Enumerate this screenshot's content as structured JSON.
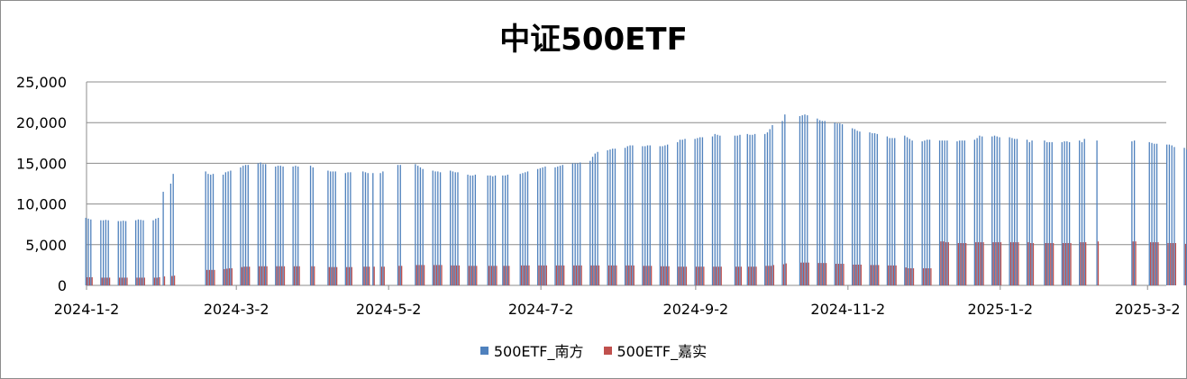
{
  "chart_data": {
    "type": "bar",
    "title": "中证500ETF",
    "xlabel": "",
    "ylabel": "",
    "ylim": [
      0,
      25000
    ],
    "yticks": [
      "0",
      "5,000",
      "10,000",
      "15,000",
      "20,000",
      "25,000"
    ],
    "xtick_labels": [
      "2024-1-2",
      "2024-3-2",
      "2024-5-2",
      "2024-7-2",
      "2024-9-2",
      "2024-11-2",
      "2025-1-2",
      "2025-3-2"
    ],
    "grid": true,
    "legend_position": "bottom",
    "series": [
      {
        "name": "500ETF_南方",
        "color": "#4f81bd"
      },
      {
        "name": "500ETF_嘉实",
        "color": "#c0504d"
      }
    ],
    "points": [
      [
        "2024-01-02",
        8300,
        1000
      ],
      [
        "2024-01-03",
        8200,
        1000
      ],
      [
        "2024-01-04",
        8100,
        1000
      ],
      [
        "2024-01-08",
        8000,
        950
      ],
      [
        "2024-01-09",
        8000,
        950
      ],
      [
        "2024-01-10",
        8050,
        950
      ],
      [
        "2024-01-11",
        8000,
        950
      ],
      [
        "2024-01-15",
        7900,
        950
      ],
      [
        "2024-01-16",
        7900,
        950
      ],
      [
        "2024-01-17",
        7950,
        950
      ],
      [
        "2024-01-18",
        7900,
        950
      ],
      [
        "2024-01-22",
        8000,
        950
      ],
      [
        "2024-01-23",
        8100,
        950
      ],
      [
        "2024-01-24",
        8050,
        950
      ],
      [
        "2024-01-25",
        8000,
        950
      ],
      [
        "2024-01-29",
        8000,
        950
      ],
      [
        "2024-01-30",
        8200,
        950
      ],
      [
        "2024-01-31",
        8300,
        1000
      ],
      [
        "2024-02-02",
        11500,
        1100
      ],
      [
        "2024-02-05",
        12500,
        1150
      ],
      [
        "2024-02-06",
        13700,
        1200
      ],
      [
        "2024-02-19",
        14000,
        1900
      ],
      [
        "2024-02-20",
        13700,
        1900
      ],
      [
        "2024-02-21",
        13600,
        1900
      ],
      [
        "2024-02-22",
        13700,
        1900
      ],
      [
        "2024-02-26",
        13600,
        2000
      ],
      [
        "2024-02-27",
        13900,
        2050
      ],
      [
        "2024-02-28",
        14000,
        2100
      ],
      [
        "2024-02-29",
        14100,
        2100
      ],
      [
        "2024-03-04",
        14500,
        2250
      ],
      [
        "2024-03-05",
        14700,
        2300
      ],
      [
        "2024-03-06",
        14800,
        2300
      ],
      [
        "2024-03-07",
        14800,
        2300
      ],
      [
        "2024-03-11",
        15000,
        2350
      ],
      [
        "2024-03-12",
        15100,
        2350
      ],
      [
        "2024-03-13",
        14900,
        2350
      ],
      [
        "2024-03-14",
        14900,
        2350
      ],
      [
        "2024-03-18",
        14600,
        2350
      ],
      [
        "2024-03-19",
        14700,
        2350
      ],
      [
        "2024-03-20",
        14700,
        2350
      ],
      [
        "2024-03-21",
        14600,
        2350
      ],
      [
        "2024-03-25",
        14600,
        2350
      ],
      [
        "2024-03-26",
        14700,
        2350
      ],
      [
        "2024-03-27",
        14600,
        2350
      ],
      [
        "2024-04-01",
        14700,
        2350
      ],
      [
        "2024-04-02",
        14500,
        2350
      ],
      [
        "2024-04-08",
        14100,
        2250
      ],
      [
        "2024-04-09",
        14000,
        2250
      ],
      [
        "2024-04-10",
        14000,
        2250
      ],
      [
        "2024-04-11",
        14000,
        2250
      ],
      [
        "2024-04-15",
        13800,
        2250
      ],
      [
        "2024-04-16",
        13900,
        2250
      ],
      [
        "2024-04-17",
        13900,
        2250
      ],
      [
        "2024-04-22",
        14000,
        2300
      ],
      [
        "2024-04-23",
        13900,
        2300
      ],
      [
        "2024-04-24",
        13800,
        2300
      ],
      [
        "2024-04-26",
        13800,
        2300
      ],
      [
        "2024-04-29",
        13800,
        2300
      ],
      [
        "2024-04-30",
        14000,
        2300
      ],
      [
        "2024-05-06",
        14800,
        2400
      ],
      [
        "2024-05-07",
        14800,
        2400
      ],
      [
        "2024-05-13",
        14900,
        2500
      ],
      [
        "2024-05-14",
        14700,
        2500
      ],
      [
        "2024-05-15",
        14500,
        2500
      ],
      [
        "2024-05-16",
        14300,
        2500
      ],
      [
        "2024-05-20",
        14100,
        2500
      ],
      [
        "2024-05-21",
        14000,
        2500
      ],
      [
        "2024-05-22",
        14000,
        2500
      ],
      [
        "2024-05-23",
        13900,
        2500
      ],
      [
        "2024-05-27",
        14100,
        2450
      ],
      [
        "2024-05-28",
        14000,
        2450
      ],
      [
        "2024-05-29",
        13900,
        2450
      ],
      [
        "2024-05-30",
        13900,
        2450
      ],
      [
        "2024-06-03",
        13600,
        2400
      ],
      [
        "2024-06-04",
        13500,
        2400
      ],
      [
        "2024-06-05",
        13500,
        2400
      ],
      [
        "2024-06-06",
        13600,
        2400
      ],
      [
        "2024-06-11",
        13500,
        2400
      ],
      [
        "2024-06-12",
        13500,
        2400
      ],
      [
        "2024-06-13",
        13400,
        2400
      ],
      [
        "2024-06-14",
        13500,
        2400
      ],
      [
        "2024-06-17",
        13500,
        2400
      ],
      [
        "2024-06-18",
        13500,
        2400
      ],
      [
        "2024-06-19",
        13600,
        2400
      ],
      [
        "2024-06-24",
        13700,
        2450
      ],
      [
        "2024-06-25",
        13800,
        2450
      ],
      [
        "2024-06-26",
        13900,
        2450
      ],
      [
        "2024-06-27",
        14000,
        2450
      ],
      [
        "2024-07-01",
        14300,
        2450
      ],
      [
        "2024-07-02",
        14400,
        2450
      ],
      [
        "2024-07-03",
        14500,
        2450
      ],
      [
        "2024-07-04",
        14600,
        2450
      ],
      [
        "2024-07-08",
        14500,
        2450
      ],
      [
        "2024-07-09",
        14600,
        2450
      ],
      [
        "2024-07-10",
        14700,
        2450
      ],
      [
        "2024-07-11",
        14800,
        2450
      ],
      [
        "2024-07-15",
        15000,
        2450
      ],
      [
        "2024-07-16",
        15000,
        2450
      ],
      [
        "2024-07-17",
        15000,
        2450
      ],
      [
        "2024-07-18",
        15100,
        2450
      ],
      [
        "2024-07-22",
        15300,
        2450
      ],
      [
        "2024-07-23",
        15800,
        2450
      ],
      [
        "2024-07-24",
        16200,
        2450
      ],
      [
        "2024-07-25",
        16400,
        2450
      ],
      [
        "2024-07-29",
        16600,
        2450
      ],
      [
        "2024-07-30",
        16700,
        2450
      ],
      [
        "2024-07-31",
        16800,
        2450
      ],
      [
        "2024-08-01",
        16800,
        2450
      ],
      [
        "2024-08-05",
        16900,
        2450
      ],
      [
        "2024-08-06",
        17100,
        2450
      ],
      [
        "2024-08-07",
        17200,
        2450
      ],
      [
        "2024-08-08",
        17200,
        2450
      ],
      [
        "2024-08-12",
        17100,
        2400
      ],
      [
        "2024-08-13",
        17100,
        2400
      ],
      [
        "2024-08-14",
        17200,
        2400
      ],
      [
        "2024-08-15",
        17200,
        2400
      ],
      [
        "2024-08-19",
        17100,
        2350
      ],
      [
        "2024-08-20",
        17100,
        2350
      ],
      [
        "2024-08-21",
        17200,
        2350
      ],
      [
        "2024-08-22",
        17300,
        2350
      ],
      [
        "2024-08-26",
        17600,
        2300
      ],
      [
        "2024-08-27",
        17900,
        2300
      ],
      [
        "2024-08-28",
        17900,
        2300
      ],
      [
        "2024-08-29",
        18000,
        2300
      ],
      [
        "2024-09-02",
        18000,
        2300
      ],
      [
        "2024-09-03",
        18100,
        2300
      ],
      [
        "2024-09-04",
        18200,
        2300
      ],
      [
        "2024-09-05",
        18200,
        2300
      ],
      [
        "2024-09-09",
        18300,
        2300
      ],
      [
        "2024-09-10",
        18600,
        2300
      ],
      [
        "2024-09-11",
        18500,
        2300
      ],
      [
        "2024-09-12",
        18400,
        2300
      ],
      [
        "2024-09-18",
        18400,
        2300
      ],
      [
        "2024-09-19",
        18400,
        2300
      ],
      [
        "2024-09-20",
        18500,
        2300
      ],
      [
        "2024-09-23",
        18600,
        2300
      ],
      [
        "2024-09-24",
        18500,
        2300
      ],
      [
        "2024-09-25",
        18500,
        2300
      ],
      [
        "2024-09-26",
        18600,
        2300
      ],
      [
        "2024-09-30",
        18600,
        2400
      ],
      [
        "2024-10-01",
        18800,
        2400
      ],
      [
        "2024-10-02",
        19200,
        2400
      ],
      [
        "2024-10-03",
        19700,
        2500
      ],
      [
        "2024-10-07",
        20200,
        2600
      ],
      [
        "2024-10-08",
        21000,
        2700
      ],
      [
        "2024-10-14",
        20800,
        2800
      ],
      [
        "2024-10-15",
        20900,
        2800
      ],
      [
        "2024-10-16",
        21000,
        2800
      ],
      [
        "2024-10-17",
        20900,
        2800
      ],
      [
        "2024-10-21",
        20500,
        2750
      ],
      [
        "2024-10-22",
        20300,
        2750
      ],
      [
        "2024-10-23",
        20200,
        2750
      ],
      [
        "2024-10-24",
        20200,
        2750
      ],
      [
        "2024-10-28",
        20000,
        2650
      ],
      [
        "2024-10-29",
        19900,
        2650
      ],
      [
        "2024-10-30",
        19900,
        2650
      ],
      [
        "2024-10-31",
        19800,
        2650
      ],
      [
        "2024-11-04",
        19300,
        2550
      ],
      [
        "2024-11-05",
        19200,
        2550
      ],
      [
        "2024-11-06",
        19000,
        2550
      ],
      [
        "2024-11-07",
        18900,
        2550
      ],
      [
        "2024-11-11",
        18800,
        2500
      ],
      [
        "2024-11-12",
        18700,
        2500
      ],
      [
        "2024-11-13",
        18700,
        2500
      ],
      [
        "2024-11-14",
        18600,
        2500
      ],
      [
        "2024-11-18",
        18300,
        2450
      ],
      [
        "2024-11-19",
        18100,
        2450
      ],
      [
        "2024-11-20",
        18100,
        2450
      ],
      [
        "2024-11-21",
        18100,
        2450
      ],
      [
        "2024-11-25",
        18400,
        2200
      ],
      [
        "2024-11-26",
        18200,
        2100
      ],
      [
        "2024-11-27",
        18000,
        2100
      ],
      [
        "2024-11-28",
        17800,
        2100
      ],
      [
        "2024-12-02",
        17700,
        2100
      ],
      [
        "2024-12-03",
        17800,
        2100
      ],
      [
        "2024-12-04",
        17900,
        2100
      ],
      [
        "2024-12-05",
        17900,
        2100
      ],
      [
        "2024-12-09",
        17800,
        5400
      ],
      [
        "2024-12-10",
        17800,
        5400
      ],
      [
        "2024-12-11",
        17800,
        5300
      ],
      [
        "2024-12-12",
        17800,
        5300
      ],
      [
        "2024-12-16",
        17700,
        5200
      ],
      [
        "2024-12-17",
        17800,
        5200
      ],
      [
        "2024-12-18",
        17800,
        5200
      ],
      [
        "2024-12-19",
        17800,
        5200
      ],
      [
        "2024-12-23",
        17900,
        5300
      ],
      [
        "2024-12-24",
        18100,
        5300
      ],
      [
        "2024-12-25",
        18400,
        5300
      ],
      [
        "2024-12-26",
        18300,
        5300
      ],
      [
        "2024-12-30",
        18300,
        5300
      ],
      [
        "2024-12-31",
        18400,
        5300
      ],
      [
        "2025-01-01",
        18300,
        5300
      ],
      [
        "2025-01-02",
        18200,
        5300
      ],
      [
        "2025-01-06",
        18200,
        5300
      ],
      [
        "2025-01-07",
        18100,
        5300
      ],
      [
        "2025-01-08",
        18000,
        5300
      ],
      [
        "2025-01-09",
        18000,
        5300
      ],
      [
        "2025-01-13",
        17900,
        5300
      ],
      [
        "2025-01-14",
        17600,
        5200
      ],
      [
        "2025-01-15",
        17800,
        5200
      ],
      [
        "2025-01-20",
        17800,
        5200
      ],
      [
        "2025-01-21",
        17600,
        5200
      ],
      [
        "2025-01-22",
        17600,
        5200
      ],
      [
        "2025-01-23",
        17600,
        5200
      ],
      [
        "2025-01-27",
        17600,
        5200
      ],
      [
        "2025-01-28",
        17700,
        5200
      ],
      [
        "2025-01-29",
        17700,
        5200
      ],
      [
        "2025-01-30",
        17600,
        5200
      ],
      [
        "2025-02-03",
        17800,
        5300
      ],
      [
        "2025-02-04",
        17600,
        5300
      ],
      [
        "2025-02-05",
        18000,
        5300
      ],
      [
        "2025-02-10",
        17800,
        5400
      ],
      [
        "2025-02-24",
        17700,
        5400
      ],
      [
        "2025-02-25",
        17800,
        5400
      ],
      [
        "2025-03-03",
        17600,
        5300
      ],
      [
        "2025-03-04",
        17500,
        5300
      ],
      [
        "2025-03-05",
        17400,
        5300
      ],
      [
        "2025-03-06",
        17400,
        5300
      ],
      [
        "2025-03-10",
        17300,
        5200
      ],
      [
        "2025-03-11",
        17300,
        5200
      ],
      [
        "2025-03-12",
        17200,
        5200
      ],
      [
        "2025-03-13",
        17000,
        5200
      ],
      [
        "2025-03-17",
        16900,
        5100
      ],
      [
        "2025-03-18",
        16700,
        5000
      ],
      [
        "2025-03-19",
        16600,
        5000
      ],
      [
        "2025-03-20",
        16500,
        5000
      ],
      [
        "2025-03-24",
        16400,
        5000
      ],
      [
        "2025-03-25",
        16500,
        5000
      ],
      [
        "2025-03-26",
        16400,
        5000
      ],
      [
        "2025-03-27",
        16500,
        5000
      ]
    ]
  }
}
